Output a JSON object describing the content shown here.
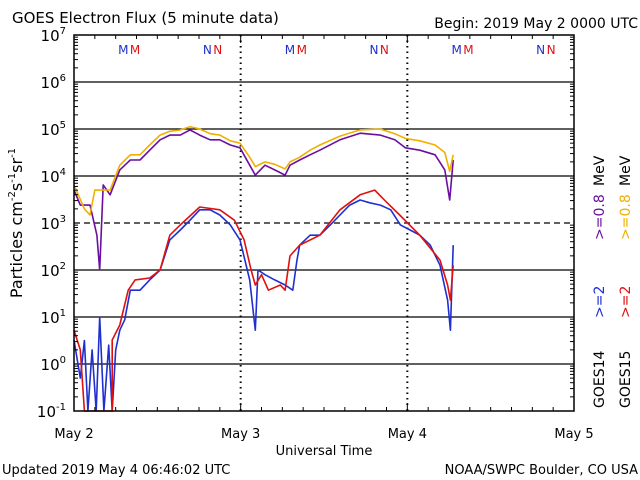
{
  "chart_data": {
    "type": "line",
    "title": "GOES Electron Flux (5 minute data)",
    "begin": "Begin: 2019 May 2 0000 UTC",
    "xlabel": "Universal Time",
    "ylabel_parts": [
      "Particles cm",
      "-2",
      "s",
      "-1",
      "sr",
      "-1"
    ],
    "x_unit": "hours since 2019 May 2 0000 UTC",
    "xlim": [
      0,
      72
    ],
    "x_ticks": [
      {
        "h": 0,
        "label": "May 2"
      },
      {
        "h": 24,
        "label": "May 3"
      },
      {
        "h": 48,
        "label": "May 4"
      },
      {
        "h": 72,
        "label": "May 5"
      }
    ],
    "y_scale": "log10",
    "ylim_log10": [
      -1,
      7
    ],
    "y_ticks": [
      {
        "e": 7,
        "label": "7"
      },
      {
        "e": 6,
        "label": "6"
      },
      {
        "e": 5,
        "label": "5"
      },
      {
        "e": 4,
        "label": "4"
      },
      {
        "e": 3,
        "label": "3"
      },
      {
        "e": 2,
        "label": "2"
      },
      {
        "e": 1,
        "label": "1"
      },
      {
        "e": 0,
        "label": "0"
      },
      {
        "e": -1,
        "label": "-1"
      }
    ],
    "threshold_log10": 3,
    "markers": [
      {
        "label": "M",
        "color": "#1f2fd0",
        "hours": [
          7.1,
          31.1,
          55.1
        ]
      },
      {
        "label": "M",
        "color": "#e01010",
        "hours": [
          8.8,
          32.8,
          56.8
        ]
      },
      {
        "label": "N",
        "color": "#1f2fd0",
        "hours": [
          19.2,
          43.2,
          67.2
        ]
      },
      {
        "label": "N",
        "color": "#e01010",
        "hours": [
          20.7,
          44.7,
          68.7
        ]
      }
    ],
    "legend": [
      {
        "sat": "GOES14",
        "lo": ">=2",
        "hi": ">=0.8",
        "unit": "MeV",
        "lo_color": "#1f2fd0",
        "hi_color": "#6a0fa0"
      },
      {
        "sat": "GOES15",
        "lo": ">=2",
        "hi": ">=0.8",
        "unit": "MeV",
        "lo_color": "#e01010",
        "hi_color": "#f0b000"
      }
    ],
    "series": [
      {
        "name": "GOES14 >=0.8 MeV",
        "color": "#6a0fa0",
        "points": [
          [
            0,
            3.7
          ],
          [
            0.9,
            3.38
          ],
          [
            2.3,
            3.38
          ],
          [
            3.3,
            2.74
          ],
          [
            3.7,
            2.0
          ],
          [
            4.2,
            3.81
          ],
          [
            5.2,
            3.6
          ],
          [
            6.6,
            4.13
          ],
          [
            8.1,
            4.34
          ],
          [
            9.5,
            4.34
          ],
          [
            10.9,
            4.55
          ],
          [
            12.4,
            4.77
          ],
          [
            13.8,
            4.87
          ],
          [
            15.3,
            4.87
          ],
          [
            16.7,
            4.98
          ],
          [
            18.1,
            4.87
          ],
          [
            19.6,
            4.77
          ],
          [
            21.0,
            4.77
          ],
          [
            22.5,
            4.66
          ],
          [
            23.9,
            4.6
          ],
          [
            25.3,
            4.23
          ],
          [
            26.1,
            4.02
          ],
          [
            27.5,
            4.23
          ],
          [
            28.9,
            4.13
          ],
          [
            30.4,
            4.02
          ],
          [
            31.1,
            4.23
          ],
          [
            32.5,
            4.34
          ],
          [
            34.0,
            4.45
          ],
          [
            35.4,
            4.55
          ],
          [
            38.3,
            4.77
          ],
          [
            41.2,
            4.91
          ],
          [
            44.1,
            4.87
          ],
          [
            46.2,
            4.77
          ],
          [
            47.7,
            4.6
          ],
          [
            49.8,
            4.55
          ],
          [
            52.0,
            4.45
          ],
          [
            53.4,
            4.13
          ],
          [
            54.1,
            3.49
          ],
          [
            54.6,
            4.34
          ]
        ]
      },
      {
        "name": "GOES15 >=0.8 MeV",
        "color": "#f0b000",
        "points": [
          [
            0,
            3.81
          ],
          [
            1.5,
            3.3
          ],
          [
            2.3,
            3.17
          ],
          [
            3.0,
            3.7
          ],
          [
            4.2,
            3.7
          ],
          [
            5.2,
            3.7
          ],
          [
            6.6,
            4.23
          ],
          [
            8.1,
            4.45
          ],
          [
            9.5,
            4.45
          ],
          [
            10.9,
            4.66
          ],
          [
            12.4,
            4.87
          ],
          [
            13.8,
            4.95
          ],
          [
            15.3,
            4.98
          ],
          [
            16.7,
            5.05
          ],
          [
            18.1,
            5.0
          ],
          [
            19.6,
            4.9
          ],
          [
            21.0,
            4.87
          ],
          [
            22.5,
            4.75
          ],
          [
            23.9,
            4.7
          ],
          [
            25.3,
            4.4
          ],
          [
            26.1,
            4.2
          ],
          [
            27.5,
            4.3
          ],
          [
            28.9,
            4.25
          ],
          [
            30.4,
            4.15
          ],
          [
            31.1,
            4.3
          ],
          [
            32.5,
            4.4
          ],
          [
            34.0,
            4.55
          ],
          [
            35.4,
            4.66
          ],
          [
            38.3,
            4.85
          ],
          [
            41.2,
            4.98
          ],
          [
            44.1,
            5.0
          ],
          [
            46.2,
            4.9
          ],
          [
            47.7,
            4.8
          ],
          [
            49.8,
            4.75
          ],
          [
            52.0,
            4.66
          ],
          [
            53.4,
            4.5
          ],
          [
            54.1,
            4.1
          ],
          [
            54.6,
            4.45
          ]
        ]
      },
      {
        "name": "GOES14 >=2 MeV",
        "color": "#1f2fd0",
        "points": [
          [
            0,
            0.51
          ],
          [
            0.9,
            -0.3
          ],
          [
            1.5,
            0.5
          ],
          [
            2.0,
            -1
          ],
          [
            2.6,
            0.3
          ],
          [
            3.2,
            -1
          ],
          [
            3.7,
            1.0
          ],
          [
            4.3,
            -1
          ],
          [
            5.0,
            0.4
          ],
          [
            5.5,
            -1
          ],
          [
            6.0,
            0.3
          ],
          [
            6.6,
            0.72
          ],
          [
            7.3,
            0.94
          ],
          [
            8.1,
            1.57
          ],
          [
            9.5,
            1.57
          ],
          [
            10.9,
            1.79
          ],
          [
            12.4,
            2.0
          ],
          [
            13.8,
            2.64
          ],
          [
            15.3,
            2.85
          ],
          [
            16.7,
            3.06
          ],
          [
            18.1,
            3.28
          ],
          [
            19.6,
            3.28
          ],
          [
            21.0,
            3.17
          ],
          [
            22.5,
            2.96
          ],
          [
            23.9,
            2.64
          ],
          [
            25.3,
            1.79
          ],
          [
            26.1,
            0.72
          ],
          [
            26.5,
            2.0
          ],
          [
            27.5,
            1.9
          ],
          [
            28.9,
            1.79
          ],
          [
            30.4,
            1.68
          ],
          [
            31.5,
            1.57
          ],
          [
            32.1,
            2.2
          ],
          [
            32.5,
            2.53
          ],
          [
            34.0,
            2.74
          ],
          [
            35.4,
            2.74
          ],
          [
            36.9,
            2.96
          ],
          [
            38.3,
            3.17
          ],
          [
            39.7,
            3.38
          ],
          [
            41.2,
            3.49
          ],
          [
            42.6,
            3.43
          ],
          [
            44.1,
            3.38
          ],
          [
            45.6,
            3.28
          ],
          [
            47.0,
            2.96
          ],
          [
            48.4,
            2.85
          ],
          [
            49.8,
            2.74
          ],
          [
            51.3,
            2.53
          ],
          [
            52.7,
            2.1
          ],
          [
            53.8,
            1.36
          ],
          [
            54.2,
            0.72
          ],
          [
            54.6,
            2.53
          ]
        ]
      },
      {
        "name": "GOES15 >=2 MeV",
        "color": "#e01010",
        "points": [
          [
            0,
            0.72
          ],
          [
            0.9,
            0.3
          ],
          [
            1.5,
            -1
          ],
          [
            5.5,
            -1
          ],
          [
            5.5,
            0.51
          ],
          [
            6.6,
            0.83
          ],
          [
            7.8,
            1.57
          ],
          [
            8.8,
            1.79
          ],
          [
            10.9,
            1.83
          ],
          [
            12.4,
            2.0
          ],
          [
            13.8,
            2.74
          ],
          [
            15.3,
            2.96
          ],
          [
            18.1,
            3.34
          ],
          [
            21.0,
            3.28
          ],
          [
            23.1,
            3.06
          ],
          [
            24.5,
            2.64
          ],
          [
            25.5,
            2.0
          ],
          [
            26.1,
            1.68
          ],
          [
            27.0,
            1.9
          ],
          [
            28.0,
            1.57
          ],
          [
            29.7,
            1.68
          ],
          [
            30.4,
            1.57
          ],
          [
            31.1,
            2.3
          ],
          [
            32.5,
            2.53
          ],
          [
            35.4,
            2.74
          ],
          [
            38.3,
            3.28
          ],
          [
            41.2,
            3.6
          ],
          [
            43.3,
            3.7
          ],
          [
            44.7,
            3.49
          ],
          [
            46.9,
            3.17
          ],
          [
            49.8,
            2.74
          ],
          [
            52.7,
            2.21
          ],
          [
            53.8,
            1.68
          ],
          [
            54.2,
            1.36
          ],
          [
            54.6,
            2.1
          ]
        ]
      }
    ]
  },
  "footer": {
    "updated": "Updated 2019 May  4 06:46:02 UTC",
    "credit": "NOAA/SWPC Boulder, CO USA"
  }
}
